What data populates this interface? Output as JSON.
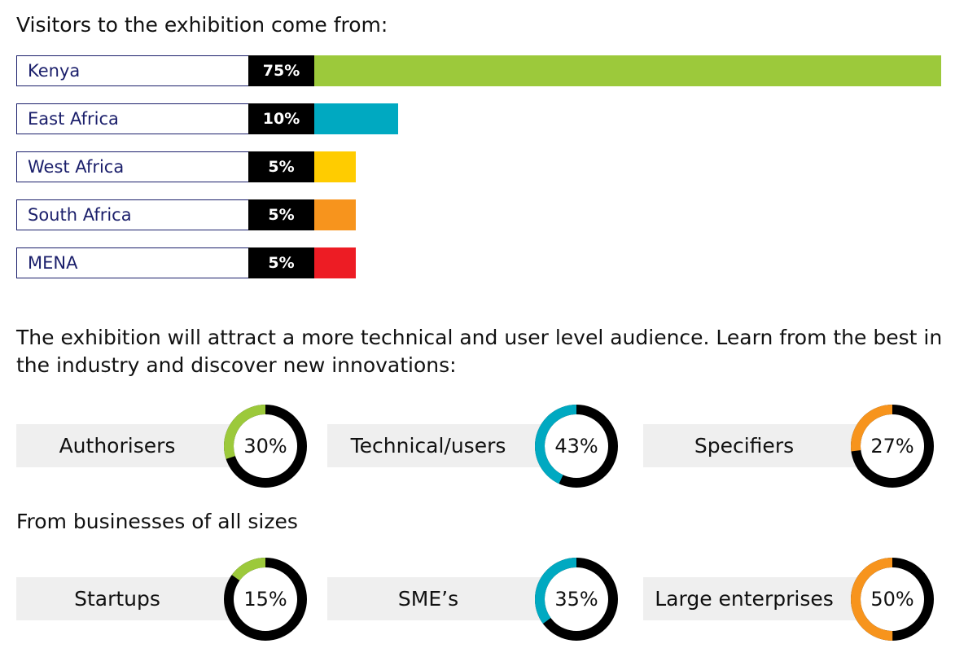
{
  "heading1": "Visitors to the exhibition come from:",
  "heading2": "The exhibition will attract a more technical and user level audience. Learn from the best in the industry and discover new innovations:",
  "heading3": "From businesses of all sizes",
  "chart_data": [
    {
      "type": "bar",
      "categories": [
        "Kenya",
        "East Africa",
        "West Africa",
        "South Africa",
        "MENA"
      ],
      "values": [
        75,
        10,
        5,
        5,
        5
      ],
      "labels": [
        "75%",
        "10%",
        "5%",
        "5%",
        "5%"
      ],
      "colors": [
        "#9cc93b",
        "#00a9c1",
        "#ffcc00",
        "#f7941d",
        "#ed1c24"
      ],
      "xlim": [
        0,
        75
      ]
    },
    {
      "type": "pie",
      "categories": [
        "Authorisers",
        "Technical/users",
        "Specifiers"
      ],
      "values": [
        30,
        43,
        27
      ],
      "labels": [
        "30%",
        "43%",
        "27%"
      ],
      "colors": [
        "#9cc93b",
        "#00a9c1",
        "#f7941d"
      ]
    },
    {
      "type": "pie",
      "categories": [
        "Startups",
        "SME’s",
        "Large enterprises"
      ],
      "values": [
        15,
        35,
        50
      ],
      "labels": [
        "15%",
        "35%",
        "50%"
      ],
      "colors": [
        "#9cc93b",
        "#00a9c1",
        "#f7941d"
      ]
    }
  ]
}
